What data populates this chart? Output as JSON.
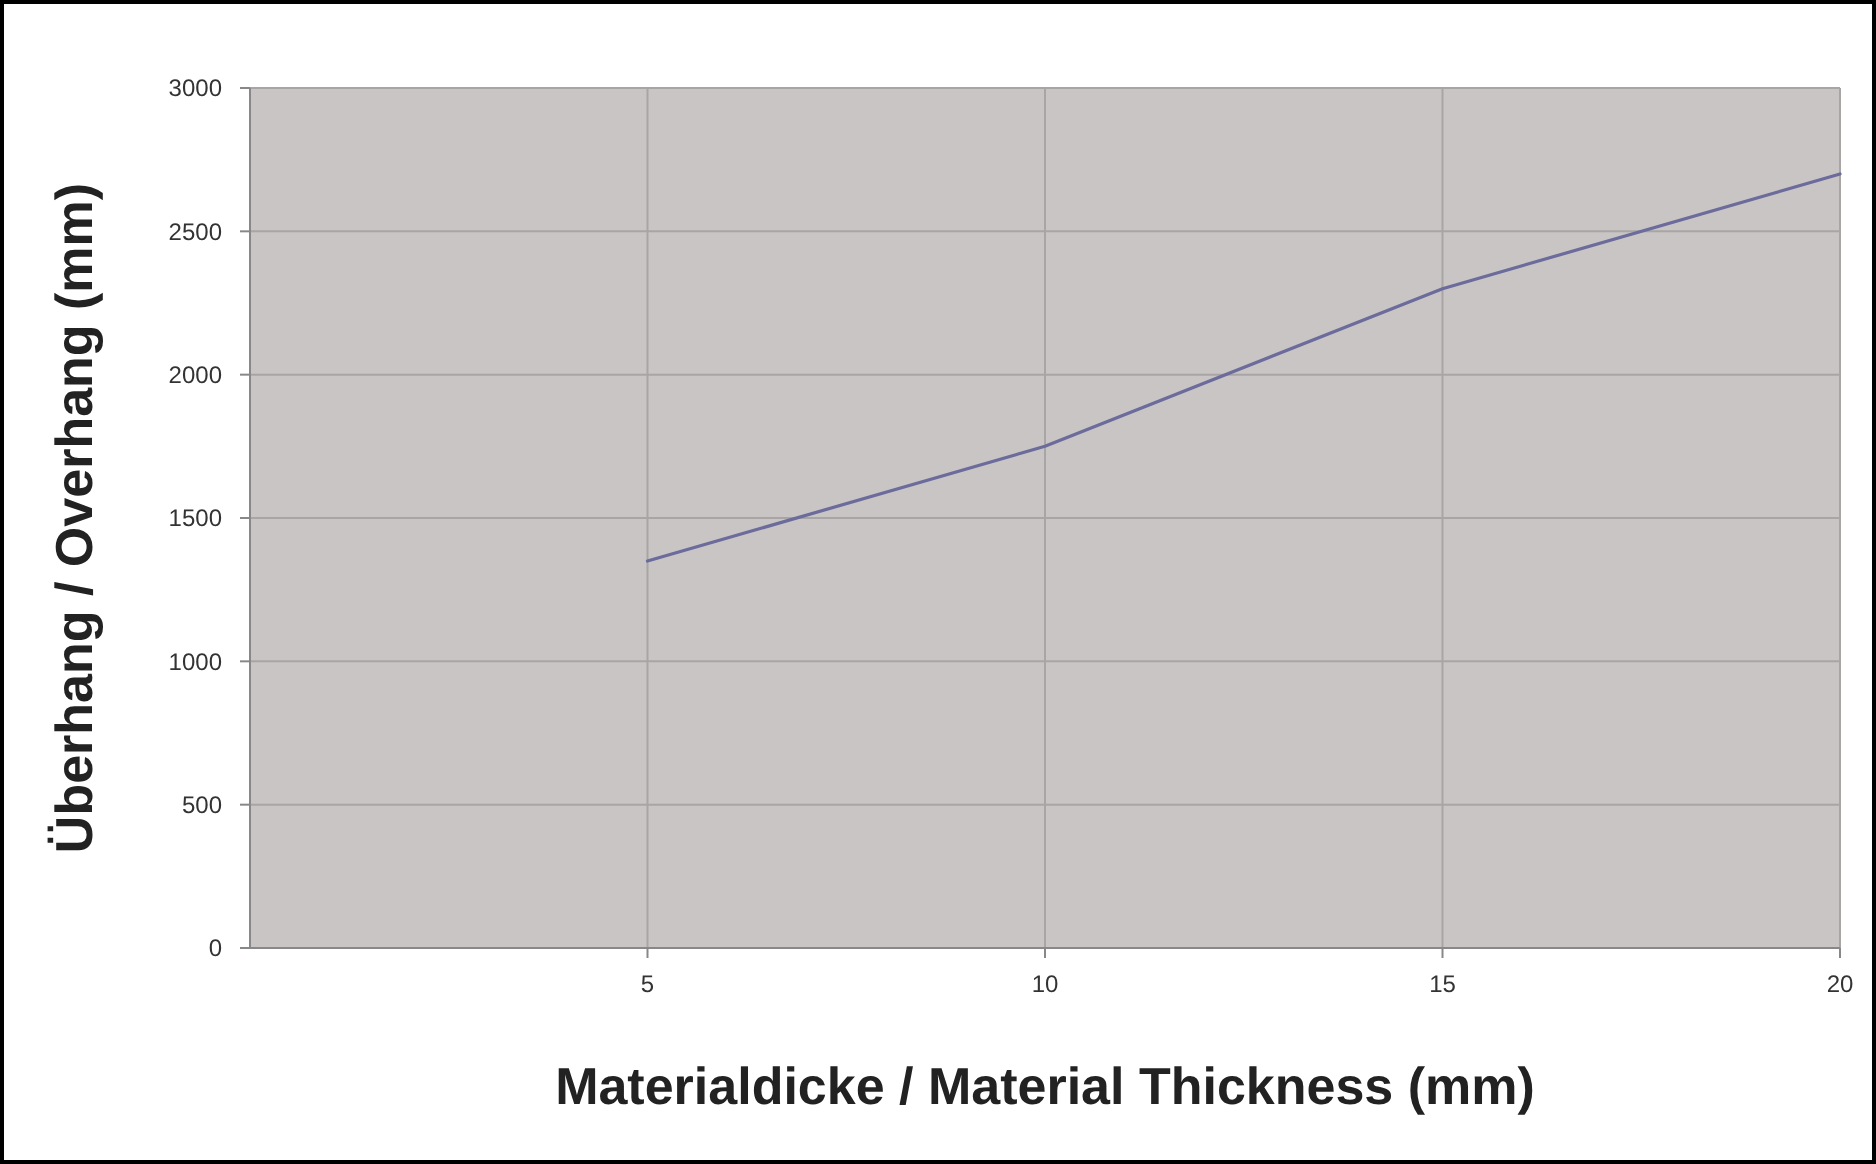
{
  "chart_data": {
    "type": "line",
    "xlabel": "Materialdicke / Material Thickness (mm)",
    "ylabel": "Überhang / Overhang (mm)",
    "x": [
      5,
      10,
      15,
      20
    ],
    "series": [
      {
        "color": "#6b6b9c",
        "values": [
          1350,
          1750,
          2300,
          2700
        ]
      }
    ],
    "xlim": [
      0,
      20
    ],
    "xticks": [
      5,
      10,
      15,
      20
    ],
    "ylim": [
      0,
      3000
    ],
    "yticks": [
      0,
      500,
      1000,
      1500,
      2000,
      2500,
      3000
    ],
    "grid": true,
    "marker": "none",
    "line_style": "solid"
  }
}
